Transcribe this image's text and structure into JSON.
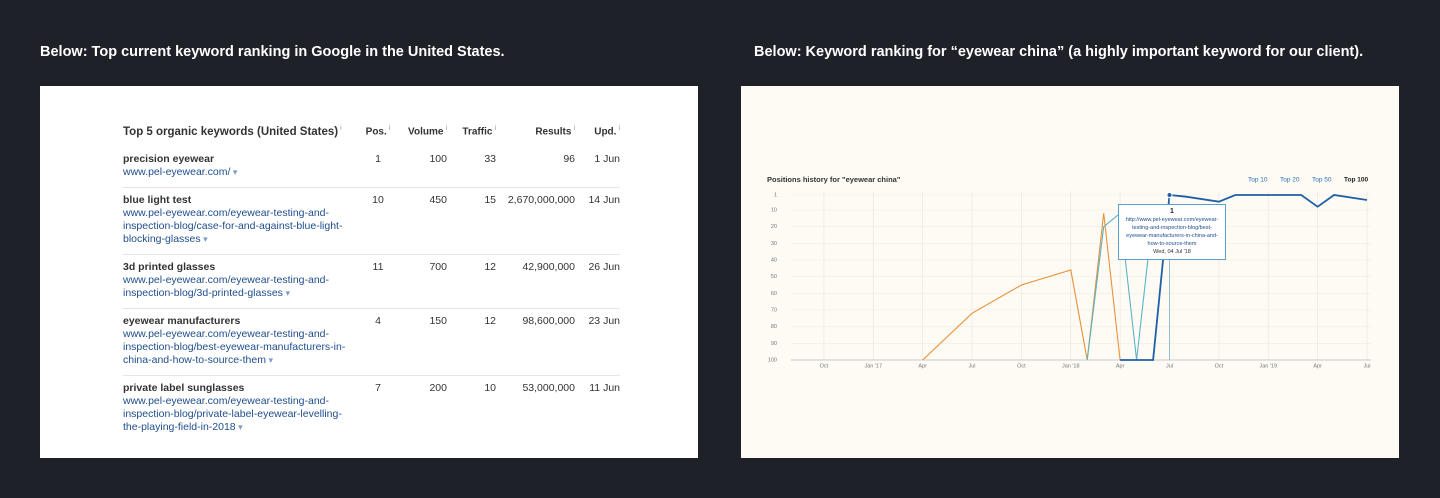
{
  "captions": {
    "left": "Below: Top current keyword ranking in Google in the United States.",
    "right": "Below: Keyword ranking for “eyewear china” (a highly important keyword for our client)."
  },
  "table": {
    "title": "Top 5 organic keywords (United States)",
    "columns": [
      "Pos.",
      "Volume",
      "Traffic",
      "Results",
      "Upd."
    ],
    "rows": [
      {
        "keyword": "precision eyewear",
        "url": "www.pel-eyewear.com/",
        "cells": [
          "1",
          "100",
          "33",
          "96",
          "1 Jun"
        ]
      },
      {
        "keyword": "blue light test",
        "url": "www.pel-eyewear.com/eyewear-testing-and-inspection-blog/case-for-and-against-blue-light-blocking-glasses",
        "cells": [
          "10",
          "450",
          "15",
          "2,670,000,000",
          "14 Jun"
        ]
      },
      {
        "keyword": "3d printed glasses",
        "url": "www.pel-eyewear.com/eyewear-testing-and-inspection-blog/3d-printed-glasses",
        "cells": [
          "11",
          "700",
          "12",
          "42,900,000",
          "26 Jun"
        ]
      },
      {
        "keyword": "eyewear manufacturers",
        "url": "www.pel-eyewear.com/eyewear-testing-and-inspection-blog/best-eyewear-manufacturers-in-china-and-how-to-source-them",
        "cells": [
          "4",
          "150",
          "12",
          "98,600,000",
          "23 Jun"
        ]
      },
      {
        "keyword": "private label sunglasses",
        "url": "www.pel-eyewear.com/eyewear-testing-and-inspection-blog/private-label-eyewear-levelling-the-playing-field-in-2018",
        "cells": [
          "7",
          "200",
          "10",
          "53,000,000",
          "11 Jun"
        ]
      }
    ]
  },
  "chart_data": {
    "type": "line",
    "title": "Positions history for \"eyewear china\"",
    "range_buttons": [
      "Top 10",
      "Top 20",
      "Top 50",
      "Top 100"
    ],
    "ylim": [
      100,
      1
    ],
    "yticks": [
      1,
      10,
      20,
      30,
      40,
      50,
      60,
      70,
      80,
      90,
      100
    ],
    "xlim": [
      "2016-08",
      "2019-07"
    ],
    "xticks": [
      {
        "value": "2016-10",
        "label": "Oct"
      },
      {
        "value": "2017-01",
        "label": "Jan '17"
      },
      {
        "value": "2017-04",
        "label": "Apr"
      },
      {
        "value": "2017-07",
        "label": "Jul"
      },
      {
        "value": "2017-10",
        "label": "Oct"
      },
      {
        "value": "2018-01",
        "label": "Jan '18"
      },
      {
        "value": "2018-04",
        "label": "Apr"
      },
      {
        "value": "2018-07",
        "label": "Jul"
      },
      {
        "value": "2018-10",
        "label": "Oct"
      },
      {
        "value": "2019-01",
        "label": "Jan '19"
      },
      {
        "value": "2019-04",
        "label": "Apr"
      },
      {
        "value": "2019-07",
        "label": "Jul"
      }
    ],
    "grid": true,
    "series": [
      {
        "color": "#e8913a",
        "x": [
          "2017-04",
          "2017-07",
          "2017-10",
          "2018-01",
          "2018-02",
          "2018-03",
          "2018-04"
        ],
        "values": [
          100,
          72,
          55,
          46,
          100,
          12,
          100
        ]
      },
      {
        "color": "#5ab4c8",
        "x": [
          "2018-02",
          "2018-03",
          "2018-04",
          "2018-05",
          "2018-06"
        ],
        "values": [
          100,
          20,
          12,
          100,
          12
        ]
      },
      {
        "color": "#1f5fa6",
        "x": [
          "2018-04",
          "2018-06",
          "2018-07",
          "2018-08",
          "2018-10",
          "2018-11",
          "2019-01",
          "2019-03",
          "2019-04",
          "2019-05",
          "2019-07"
        ],
        "values": [
          100,
          100,
          1,
          2,
          5,
          1,
          1,
          1,
          8,
          1,
          4
        ]
      }
    ],
    "tooltip": {
      "value": "1",
      "url": "http://www.pel-eyewear.com/eyewear-testing-and-inspection-blog/best-eyewear-manufacturers-in-china-and-how-to-source-them",
      "date": "Wed, 04 Jul '18"
    }
  }
}
